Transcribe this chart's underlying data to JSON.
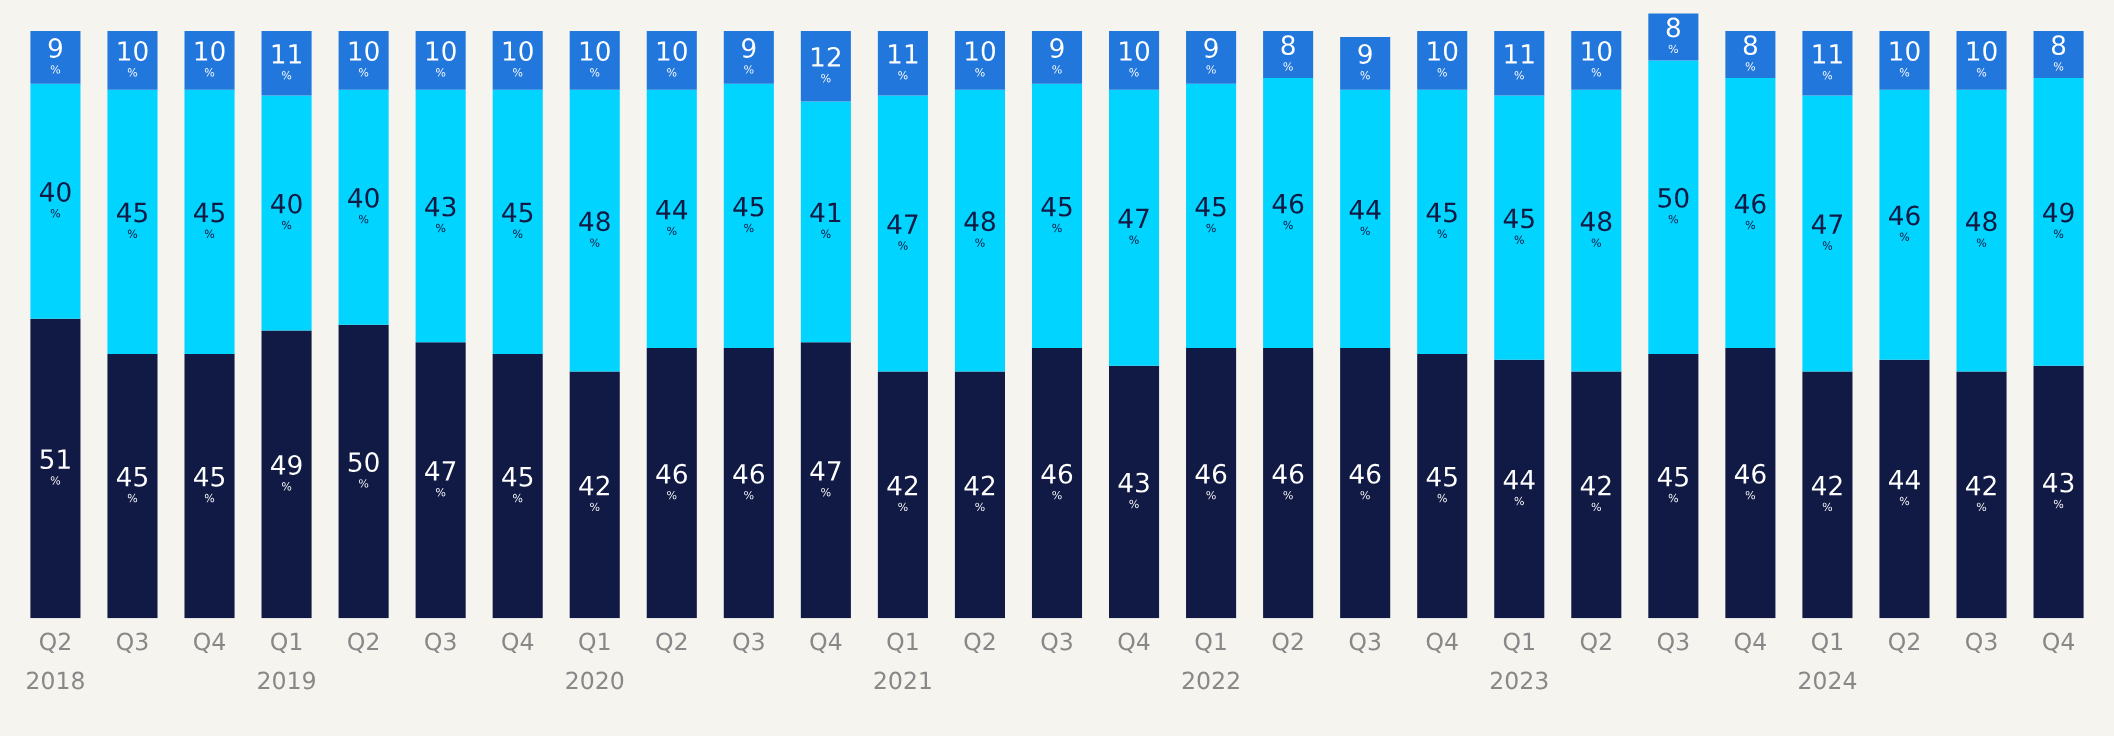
{
  "chart_data": {
    "type": "bar",
    "stacked": true,
    "categories": [
      "Q2\n2018",
      "Q3",
      "Q4",
      "Q1\n2019",
      "Q2",
      "Q3",
      "Q4",
      "Q1\n2020",
      "Q2",
      "Q3",
      "Q4",
      "Q1\n2021",
      "Q2",
      "Q3",
      "Q4",
      "Q1\n2022",
      "Q2",
      "Q3",
      "Q4",
      "Q1\n2023",
      "Q2",
      "Q3",
      "Q4",
      "Q1\n2024",
      "Q2",
      "Q3",
      "Q4"
    ],
    "tick_labels": "x",
    "grid": false,
    "legend": false,
    "series": [
      {
        "color": "#111a44",
        "values": [
          51,
          45,
          45,
          49,
          50,
          47,
          45,
          42,
          46,
          46,
          47,
          42,
          42,
          46,
          43,
          46,
          46,
          46,
          45,
          44,
          42,
          45,
          46,
          42,
          44,
          42,
          43
        ],
        "value_labels": [
          "51\n%",
          "45\n%",
          "45\n%",
          "49\n%",
          "50\n%",
          "47\n%",
          "45\n%",
          "42\n%",
          "46\n%",
          "46\n%",
          "47\n%",
          "42\n%",
          "42\n%",
          "46\n%",
          "43\n%",
          "46\n%",
          "46\n%",
          "46\n%",
          "45\n%",
          "44\n%",
          "42\n%",
          "45\n%",
          "46\n%",
          "42\n%",
          "44\n%",
          "42\n%",
          "43\n%"
        ]
      },
      {
        "color": "#00d4ff",
        "values": [
          40,
          45,
          45,
          40,
          40,
          43,
          45,
          48,
          44,
          45,
          41,
          47,
          48,
          45,
          47,
          45,
          46,
          44,
          45,
          45,
          48,
          50,
          46,
          47,
          46,
          48,
          49
        ],
        "value_labels": [
          "40\n%",
          "45\n%",
          "45\n%",
          "40\n%",
          "40\n%",
          "43\n%",
          "45\n%",
          "48\n%",
          "44\n%",
          "45\n%",
          "41\n%",
          "47\n%",
          "48\n%",
          "45\n%",
          "47\n%",
          "45\n%",
          "46\n%",
          "44\n%",
          "45\n%",
          "45\n%",
          "48\n%",
          "50\n%",
          "46\n%",
          "47\n%",
          "46\n%",
          "48\n%",
          "49\n%"
        ]
      },
      {
        "color": "#2277dd",
        "values": [
          9,
          10,
          10,
          11,
          10,
          10,
          10,
          10,
          10,
          9,
          12,
          11,
          10,
          9,
          10,
          9,
          8,
          9,
          10,
          11,
          10,
          8,
          8,
          11,
          10,
          10,
          8
        ],
        "value_labels": [
          "9\n%",
          "10\n%",
          "10\n%",
          "11\n%",
          "10\n%",
          "10\n%",
          "10\n%",
          "10\n%",
          "10\n%",
          "9\n%",
          "12\n%",
          "11\n%",
          "10\n%",
          "9\n%",
          "10\n%",
          "9\n%",
          "8\n%",
          "9\n%",
          "10\n%",
          "11\n%",
          "10\n%",
          "8\n%",
          "8\n%",
          "11\n%",
          "10\n%",
          "10\n%",
          "8\n%"
        ]
      }
    ]
  }
}
